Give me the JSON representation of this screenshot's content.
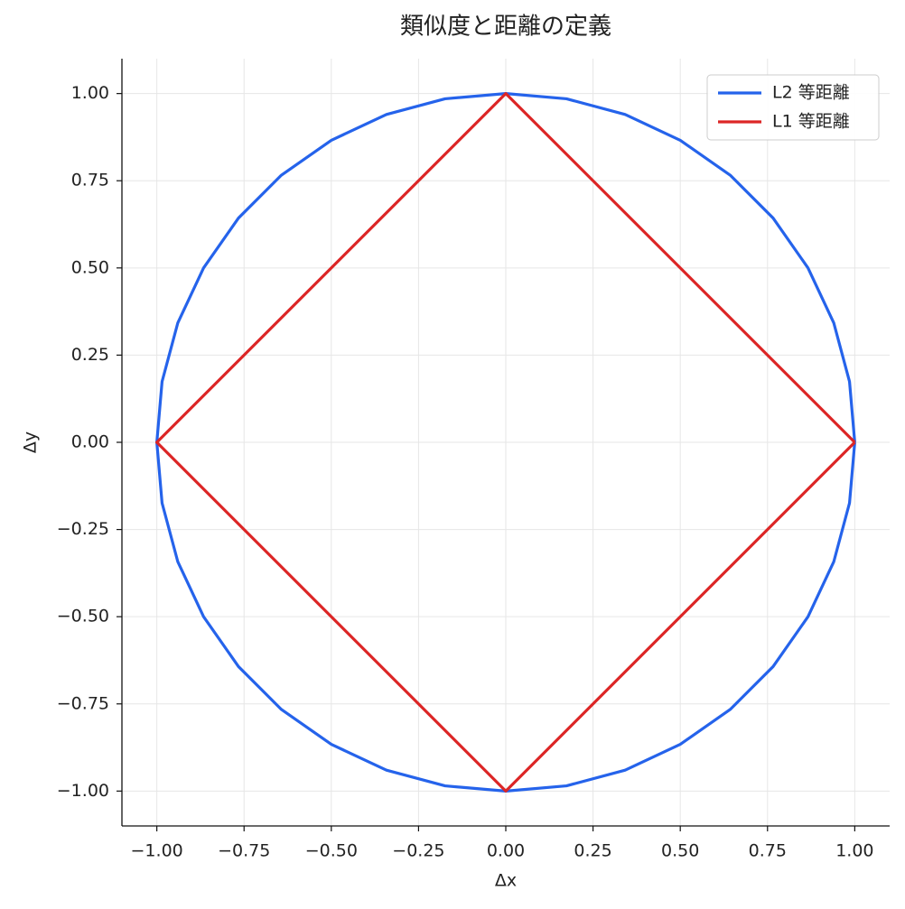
{
  "chart_data": {
    "type": "line",
    "title": "類似度と距離の定義",
    "x_label": "Δx",
    "y_label": "Δy",
    "xlim": [
      -1.1,
      1.1
    ],
    "ylim": [
      -1.1,
      1.1
    ],
    "xticks": [
      {
        "value": -1,
        "label": "−1.00"
      },
      {
        "value": -0.75,
        "label": "−0.75"
      },
      {
        "value": -0.5,
        "label": "−0.50"
      },
      {
        "value": -0.25,
        "label": "−0.25"
      },
      {
        "value": 0,
        "label": "0.00"
      },
      {
        "value": 0.25,
        "label": "0.25"
      },
      {
        "value": 0.5,
        "label": "0.50"
      },
      {
        "value": 0.75,
        "label": "0.75"
      },
      {
        "value": 1,
        "label": "1.00"
      }
    ],
    "yticks": [
      {
        "value": -1,
        "label": "−1.00"
      },
      {
        "value": -0.75,
        "label": "−0.75"
      },
      {
        "value": -0.5,
        "label": "−0.50"
      },
      {
        "value": -0.25,
        "label": "−0.25"
      },
      {
        "value": 0,
        "label": "0.00"
      },
      {
        "value": 0.25,
        "label": "0.25"
      },
      {
        "value": 0.5,
        "label": "0.50"
      },
      {
        "value": 0.75,
        "label": "0.75"
      },
      {
        "value": 1,
        "label": "1.00"
      }
    ],
    "grid": true,
    "legend": "upper-right",
    "series": [
      {
        "name": "L2 等距離",
        "color": "#2563eb",
        "x": [
          1,
          0.985,
          0.94,
          0.866,
          0.766,
          0.643,
          0.5,
          0.342,
          0.174,
          0,
          -0.174,
          -0.342,
          -0.5,
          -0.643,
          -0.766,
          -0.866,
          -0.94,
          -0.985,
          -1,
          -0.985,
          -0.94,
          -0.866,
          -0.766,
          -0.643,
          -0.5,
          -0.342,
          -0.174,
          0,
          0.174,
          0.342,
          0.5,
          0.643,
          0.766,
          0.866,
          0.94,
          0.985,
          1
        ],
        "values": [
          0,
          0.174,
          0.342,
          0.5,
          0.643,
          0.766,
          0.866,
          0.94,
          0.985,
          1,
          0.985,
          0.94,
          0.866,
          0.766,
          0.643,
          0.5,
          0.342,
          0.174,
          0,
          -0.174,
          -0.342,
          -0.5,
          -0.643,
          -0.766,
          -0.866,
          -0.94,
          -0.985,
          -1,
          -0.985,
          -0.94,
          -0.866,
          -0.766,
          -0.643,
          -0.5,
          -0.342,
          -0.174,
          0
        ]
      },
      {
        "name": "L1 等距離",
        "color": "#dc2626",
        "x": [
          1,
          0,
          -1,
          0,
          1
        ],
        "values": [
          0,
          1,
          0,
          -1,
          0
        ]
      }
    ]
  }
}
